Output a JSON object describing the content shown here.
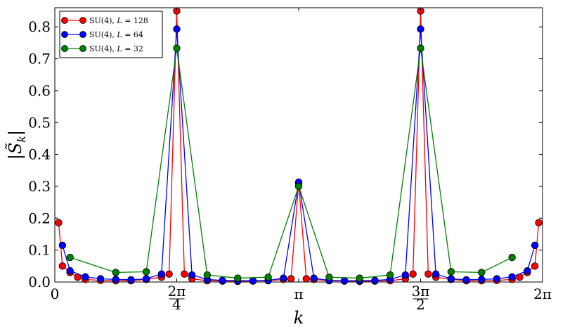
{
  "chart_data": {
    "type": "line",
    "xlabel": "k",
    "ylabel": "|S̃_k|",
    "xlim": [
      0,
      6.2832
    ],
    "ylim": [
      0,
      0.86
    ],
    "yticks": [
      {
        "v": 0.0,
        "label": "0.0"
      },
      {
        "v": 0.1,
        "label": "0.1"
      },
      {
        "v": 0.2,
        "label": "0.2"
      },
      {
        "v": 0.3,
        "label": "0.3"
      },
      {
        "v": 0.4,
        "label": "0.4"
      },
      {
        "v": 0.5,
        "label": "0.5"
      },
      {
        "v": 0.6,
        "label": "0.6"
      },
      {
        "v": 0.7,
        "label": "0.7"
      },
      {
        "v": 0.8,
        "label": "0.8"
      }
    ],
    "xticks": [
      {
        "v": 0,
        "label": "0"
      },
      {
        "v": 1.5708,
        "label": "2π",
        "denom": "4"
      },
      {
        "v": 3.1416,
        "label": "π"
      },
      {
        "v": 4.7124,
        "label": "3π",
        "denom": "2"
      },
      {
        "v": 6.2832,
        "label": "2π"
      }
    ],
    "legend_position": "top-left",
    "series": [
      {
        "name": "SU(4), L = 128",
        "name_parts": [
          "SU(4), ",
          "L",
          " = 128"
        ],
        "color": "#ff0000",
        "x": [
          0.0491,
          0.0982,
          0.1963,
          0.2945,
          0.3927,
          0.589,
          0.7854,
          0.9817,
          1.1781,
          1.3744,
          1.4726,
          1.5708,
          1.669,
          1.7671,
          1.9635,
          2.1598,
          2.3562,
          2.5525,
          2.7489,
          2.9452,
          3.0434,
          3.1416,
          3.2398,
          3.3379,
          3.5343,
          3.7306,
          3.927,
          4.1233,
          4.3197,
          4.516,
          4.6142,
          4.7124,
          4.8106,
          4.9087,
          5.1051,
          5.3014,
          5.4978,
          5.6941,
          5.8905,
          5.9886,
          6.0868,
          6.185,
          6.2341
        ],
        "y": [
          0.186,
          0.05,
          0.03,
          0.015,
          0.008,
          0.005,
          0.004,
          0.004,
          0.008,
          0.015,
          0.025,
          0.85,
          0.025,
          0.01,
          0.004,
          0.003,
          0.002,
          0.003,
          0.004,
          0.008,
          0.01,
          0.31,
          0.01,
          0.008,
          0.004,
          0.003,
          0.002,
          0.003,
          0.004,
          0.01,
          0.025,
          0.85,
          0.025,
          0.015,
          0.008,
          0.004,
          0.004,
          0.005,
          0.008,
          0.015,
          0.03,
          0.05,
          0.186
        ]
      },
      {
        "name": "SU(4), L = 64",
        "name_parts": [
          "SU(4), ",
          "L",
          " = 64"
        ],
        "color": "#0000ff",
        "x": [
          0.0982,
          0.1963,
          0.3927,
          0.589,
          0.7854,
          0.9817,
          1.1781,
          1.3744,
          1.5708,
          1.7671,
          1.9635,
          2.1598,
          2.3562,
          2.5525,
          2.7489,
          2.9452,
          3.1416,
          3.3379,
          3.5343,
          3.7306,
          3.927,
          4.1233,
          4.3197,
          4.516,
          4.7124,
          4.9087,
          5.1051,
          5.3014,
          5.4978,
          5.6941,
          5.8905,
          6.0868,
          6.185
        ],
        "y": [
          0.115,
          0.035,
          0.016,
          0.01,
          0.008,
          0.007,
          0.01,
          0.025,
          0.793,
          0.022,
          0.008,
          0.005,
          0.004,
          0.004,
          0.005,
          0.012,
          0.313,
          0.012,
          0.005,
          0.004,
          0.004,
          0.005,
          0.008,
          0.022,
          0.793,
          0.025,
          0.01,
          0.007,
          0.008,
          0.01,
          0.016,
          0.035,
          0.115
        ]
      },
      {
        "name": "SU(4), L = 32",
        "name_parts": [
          "SU(4), ",
          "L",
          " = 32"
        ],
        "color": "#008000",
        "x": [
          0.1963,
          0.7854,
          1.1781,
          1.5708,
          1.9635,
          2.3562,
          2.7489,
          3.1416,
          3.5343,
          3.927,
          4.3197,
          4.7124,
          5.1051,
          5.4978,
          5.8905
        ],
        "y": [
          0.077,
          0.03,
          0.032,
          0.733,
          0.022,
          0.012,
          0.015,
          0.3,
          0.015,
          0.012,
          0.022,
          0.733,
          0.032,
          0.03,
          0.077
        ]
      }
    ]
  }
}
